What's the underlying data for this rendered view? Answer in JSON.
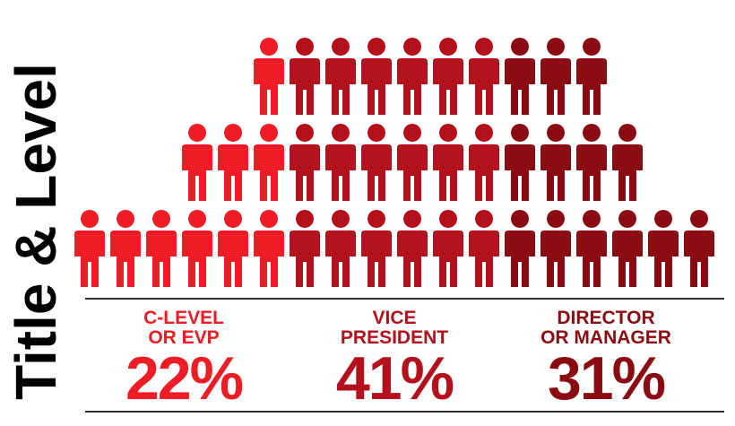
{
  "chart_data": {
    "type": "pictogram",
    "title": "Title & Level",
    "categories": [
      [
        "C-LEVEL",
        "OR EVP"
      ],
      [
        "VICE",
        "PRESIDENT"
      ],
      [
        "DIRECTOR",
        "OR MANAGER"
      ]
    ],
    "values": [
      22,
      41,
      31
    ],
    "value_labels": [
      "22%",
      "41%",
      "31%"
    ],
    "colors": [
      "#ee1c24",
      "#b3111b",
      "#8a0b12"
    ],
    "rows": [
      [
        1,
        6,
        3
      ],
      [
        3,
        6,
        4
      ],
      [
        6,
        6,
        6
      ]
    ]
  }
}
